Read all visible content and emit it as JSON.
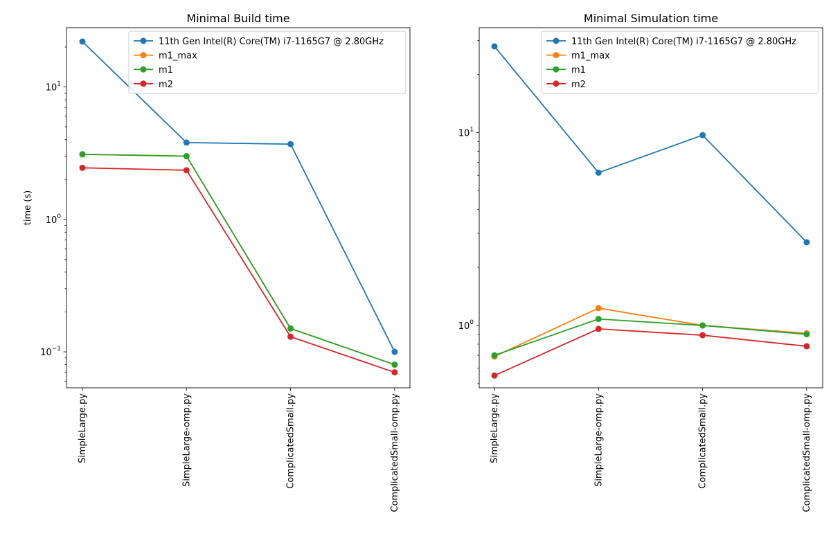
{
  "chart_data": [
    {
      "type": "line",
      "title": "Minimal Build time",
      "xlabel": "",
      "ylabel": "time (s)",
      "yscale": "log",
      "ylim": [
        0.0535,
        28
      ],
      "categories": [
        "SimpleLarge.py",
        "SimpleLarge-omp.py",
        "ComplicatedSmall.py",
        "ComplicatedSmall-omp.py"
      ],
      "yticks": [
        {
          "value": 0.1,
          "base": "10",
          "exp": "−1"
        },
        {
          "value": 1,
          "base": "10",
          "exp": "0"
        },
        {
          "value": 10,
          "base": "10",
          "exp": "1"
        }
      ],
      "legend": {
        "position": "top-right"
      },
      "series": [
        {
          "name": " 11th Gen Intel(R) Core(TM) i7-1165G7 @ 2.80GHz",
          "color": "#1f77b4",
          "values": [
            22,
            3.8,
            3.7,
            0.1
          ]
        },
        {
          "name": "m1_max",
          "color": "#ff7f0e",
          "values": [
            3.1,
            3.0,
            0.15,
            0.08
          ]
        },
        {
          "name": "m1",
          "color": "#2ca02c",
          "values": [
            3.1,
            3.0,
            0.15,
            0.08
          ]
        },
        {
          "name": "m2",
          "color": "#d62728",
          "values": [
            2.45,
            2.35,
            0.13,
            0.07
          ]
        }
      ]
    },
    {
      "type": "line",
      "title": "Minimal Simulation time",
      "xlabel": "",
      "ylabel": "",
      "yscale": "log",
      "ylim": [
        0.475,
        35
      ],
      "categories": [
        "SimpleLarge.py",
        "SimpleLarge-omp.py",
        "ComplicatedSmall.py",
        "ComplicatedSmall-omp.py"
      ],
      "yticks": [
        {
          "value": 1,
          "base": "10",
          "exp": "0"
        },
        {
          "value": 10,
          "base": "10",
          "exp": "1"
        }
      ],
      "legend": {
        "position": "top-right"
      },
      "series": [
        {
          "name": " 11th Gen Intel(R) Core(TM) i7-1165G7 @ 2.80GHz",
          "color": "#1f77b4",
          "values": [
            28,
            6.2,
            9.7,
            2.7
          ]
        },
        {
          "name": "m1_max",
          "color": "#ff7f0e",
          "values": [
            0.69,
            1.23,
            1.0,
            0.91
          ]
        },
        {
          "name": "m1",
          "color": "#2ca02c",
          "values": [
            0.7,
            1.08,
            1.0,
            0.9
          ]
        },
        {
          "name": "m2",
          "color": "#d62728",
          "values": [
            0.55,
            0.96,
            0.89,
            0.78
          ]
        }
      ]
    }
  ]
}
